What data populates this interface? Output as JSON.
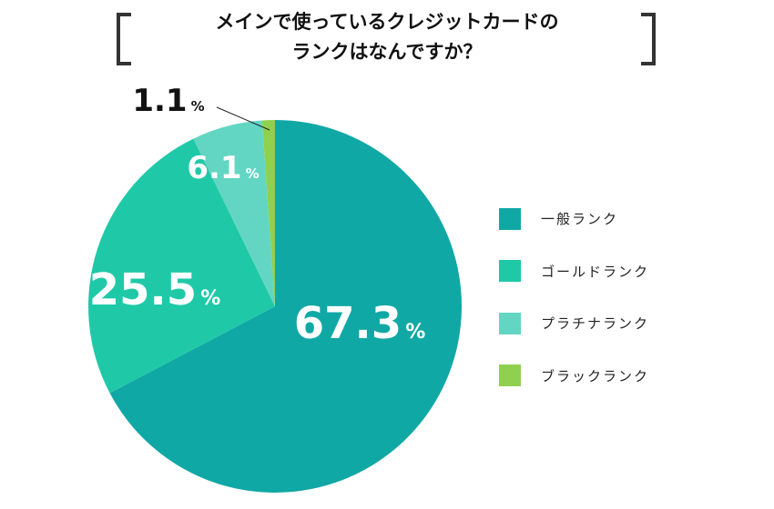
{
  "chart_data": {
    "type": "pie",
    "title_lines": [
      "メインで使っているクレジットカードの",
      "ランクはなんですか？"
    ],
    "unit": "%",
    "slices": [
      {
        "label": "一般ランク",
        "value": 67.3,
        "display": "67.3",
        "color": "#10a8a5"
      },
      {
        "label": "ゴールドランク",
        "value": 25.5,
        "display": "25.5",
        "color": "#1fc9a8"
      },
      {
        "label": "プラチナランク",
        "value": 6.1,
        "display": "6.1",
        "color": "#63d6c3"
      },
      {
        "label": "ブラックランク",
        "value": 1.1,
        "display": "1.1",
        "color": "#8fd14f"
      }
    ],
    "start_angle": "12 o'clock",
    "direction": "clockwise",
    "legend_position": "right"
  }
}
